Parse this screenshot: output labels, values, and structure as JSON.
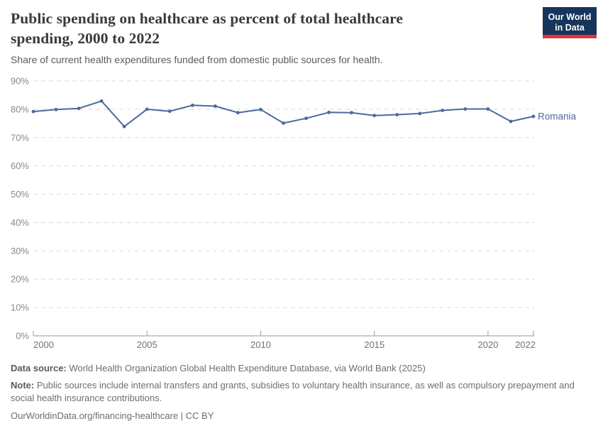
{
  "header": {
    "title_line1": "Public spending on healthcare as percent of total healthcare",
    "title_line2": "spending, 2000 to 2022",
    "subtitle": "Share of current health expenditures funded from domestic public sources for health.",
    "logo": {
      "line1": "Our World",
      "line2": "in Data"
    }
  },
  "chart_data": {
    "type": "line",
    "title": "Public spending on healthcare as percent of total healthcare spending, 2000 to 2022",
    "xlabel": "",
    "ylabel": "",
    "x": [
      2000,
      2001,
      2002,
      2003,
      2004,
      2005,
      2006,
      2007,
      2008,
      2009,
      2010,
      2011,
      2012,
      2013,
      2014,
      2015,
      2016,
      2017,
      2018,
      2019,
      2020,
      2021,
      2022
    ],
    "series": [
      {
        "name": "Romania",
        "color": "#4C6A9C",
        "values": [
          79.2,
          79.9,
          80.3,
          82.9,
          73.9,
          80.0,
          79.3,
          81.4,
          81.1,
          78.8,
          79.9,
          75.1,
          76.8,
          78.9,
          78.8,
          77.8,
          78.1,
          78.5,
          79.6,
          80.1,
          80.1,
          75.7,
          77.5
        ]
      }
    ],
    "ylim": [
      0,
      90
    ],
    "yticks": [
      0,
      10,
      20,
      30,
      40,
      50,
      60,
      70,
      80,
      90
    ],
    "ytick_suffix": "%",
    "xticks": [
      2000,
      2005,
      2010,
      2015,
      2020,
      2022
    ],
    "grid": "dashed-horizontal",
    "legend_position": "end-of-line"
  },
  "footer": {
    "data_source_label": "Data source:",
    "data_source_text": " World Health Organization Global Health Expenditure Database, via World Bank (2025)",
    "note_label": "Note:",
    "note_text": " Public sources include internal transfers and grants, subsidies to voluntary health insurance, as well as compulsory prepayment and social health insurance contributions.",
    "license_text": "OurWorldinData.org/financing-healthcare | CC BY"
  },
  "colors": {
    "line": "#4C6A9C",
    "grid": "#dadada",
    "axis": "#959595",
    "tick": "#9a9a9a",
    "ytick_label": "#898989",
    "xtick_label": "#737373",
    "series_label": "#4C6A9C"
  }
}
